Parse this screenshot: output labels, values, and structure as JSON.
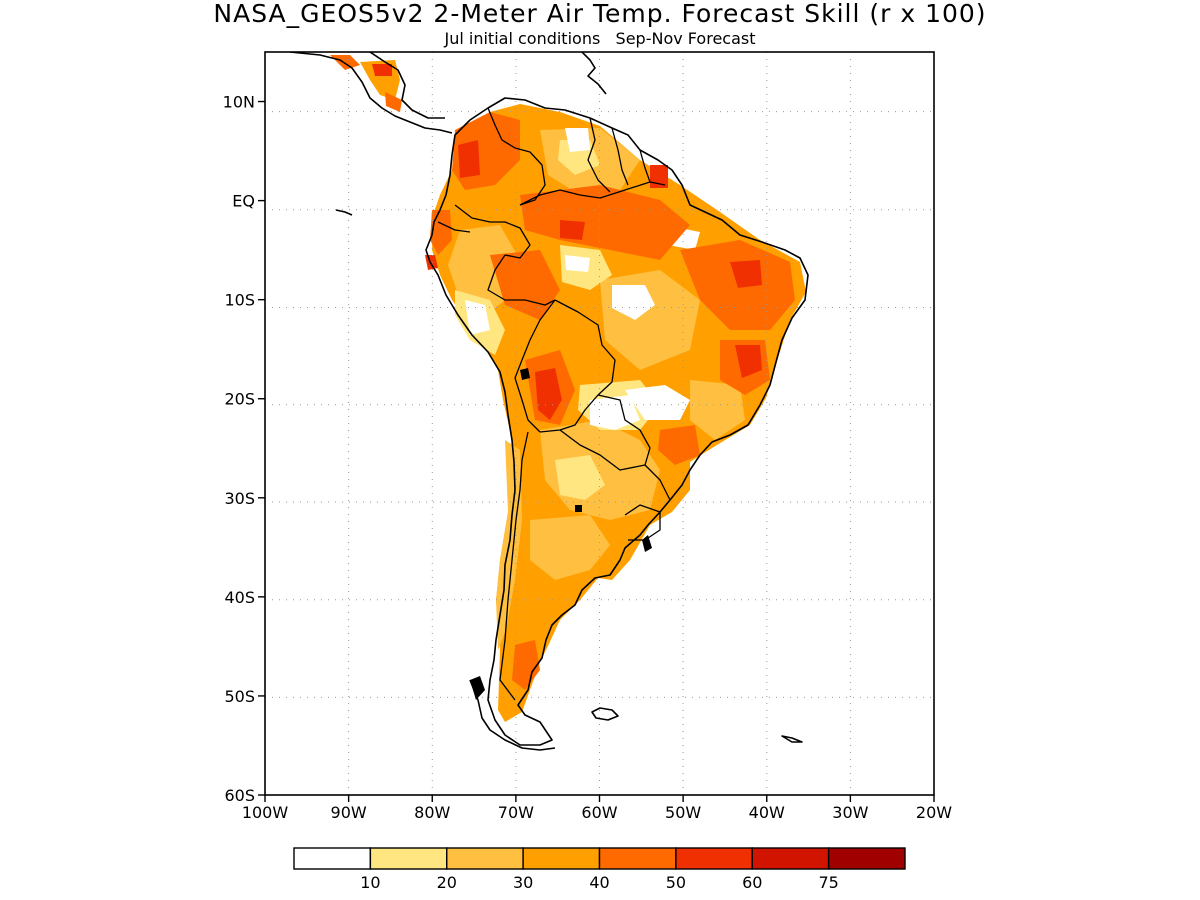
{
  "title": "NASA_GEOS5v2 2-Meter Air Temp. Forecast Skill (r x 100)",
  "subtitle": "Jul initial conditions   Sep-Nov Forecast",
  "map": {
    "region": "South America",
    "lon_range": [
      -100,
      -20
    ],
    "lat_range": [
      -60,
      15
    ],
    "lon_ticks": [
      "100W",
      "90W",
      "80W",
      "70W",
      "60W",
      "50W",
      "40W",
      "30W",
      "20W"
    ],
    "lon_tick_values": [
      -100,
      -90,
      -80,
      -70,
      -60,
      -50,
      -40,
      -30,
      -20
    ],
    "lat_ticks": [
      "10N",
      "EQ",
      "10S",
      "20S",
      "30S",
      "40S",
      "50S",
      "60S"
    ],
    "lat_tick_values": [
      10,
      0,
      -10,
      -20,
      -30,
      -40,
      -50,
      -60
    ],
    "grid": "dotted",
    "colors": {
      "coast": "#000000",
      "border": "#000000",
      "grid": "#9a9a9a"
    }
  },
  "colorbar": {
    "labels": [
      "10",
      "20",
      "30",
      "40",
      "50",
      "60",
      "75"
    ],
    "bins": [
      {
        "min": null,
        "max": 10,
        "color": "#ffffff"
      },
      {
        "min": 10,
        "max": 20,
        "color": "#ffe680"
      },
      {
        "min": 20,
        "max": 30,
        "color": "#ffbf40"
      },
      {
        "min": 30,
        "max": 40,
        "color": "#ffa000"
      },
      {
        "min": 40,
        "max": 50,
        "color": "#ff6a00"
      },
      {
        "min": 50,
        "max": 60,
        "color": "#f03000"
      },
      {
        "min": 60,
        "max": 75,
        "color": "#d01400"
      },
      {
        "min": 75,
        "max": null,
        "color": "#a00000"
      }
    ]
  }
}
